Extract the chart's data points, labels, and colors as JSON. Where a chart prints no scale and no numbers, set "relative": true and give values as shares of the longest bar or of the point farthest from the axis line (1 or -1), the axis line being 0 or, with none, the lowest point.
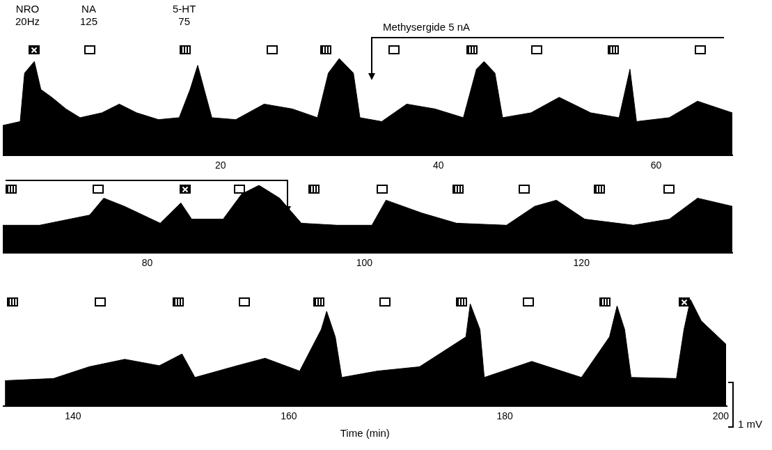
{
  "chart_data": [
    {
      "type": "area",
      "relative": true,
      "grid": false,
      "legend": false,
      "tick_labels": "x",
      "xlim": [
        0,
        67
      ],
      "xticks": [
        20,
        40,
        60
      ],
      "annotations": [
        "NRO\n20Hz",
        "NA\n125",
        "5-HT\n75",
        "Methysergide 5 nA"
      ],
      "series": [
        {
          "color": "#000000",
          "x": [
            0,
            1.6,
            2.0,
            2.9,
            3.5,
            4.5,
            5.8,
            7.1,
            9.1,
            10.7,
            12.3,
            14.3,
            16.2,
            17.2,
            17.9,
            18.5,
            19.2,
            21.4,
            24.0,
            26.6,
            28.9,
            29.9,
            30.9,
            32.2,
            32.8,
            34.8,
            37.1,
            39.7,
            42.3,
            43.5,
            44.2,
            45.2,
            45.9,
            48.5,
            51.1,
            54.0,
            56.6,
            57.6,
            58.2,
            61.2,
            63.8,
            67.0
          ],
          "values": [
            0.31,
            0.35,
            0.85,
            0.97,
            0.68,
            0.6,
            0.48,
            0.39,
            0.44,
            0.53,
            0.44,
            0.37,
            0.39,
            0.68,
            0.93,
            0.68,
            0.39,
            0.37,
            0.53,
            0.48,
            0.39,
            0.85,
            1,
            0.85,
            0.39,
            0.35,
            0.53,
            0.48,
            0.39,
            0.89,
            0.97,
            0.85,
            0.39,
            0.44,
            0.6,
            0.44,
            0.39,
            0.89,
            0.35,
            0.39,
            0.56,
            0.44
          ]
        }
      ]
    },
    {
      "type": "area",
      "relative": true,
      "grid": false,
      "legend": false,
      "tick_labels": "x",
      "xlim": [
        66.7,
        133.9
      ],
      "xticks": [
        80,
        100,
        120
      ],
      "series": [
        {
          "color": "#000000",
          "x": [
            66.7,
            70.1,
            74.7,
            76.0,
            77.9,
            81.2,
            83.1,
            84.1,
            87.0,
            88.7,
            90.3,
            92.2,
            94.2,
            97.5,
            100.7,
            102.0,
            105.3,
            108.5,
            113.1,
            115.7,
            117.7,
            120.3,
            124.8,
            128.1,
            130.7,
            133.9
          ],
          "values": [
            0.41,
            0.41,
            0.56,
            0.81,
            0.69,
            0.44,
            0.74,
            0.5,
            0.5,
            0.87,
            1,
            0.81,
            0.44,
            0.41,
            0.41,
            0.78,
            0.59,
            0.44,
            0.41,
            0.69,
            0.78,
            0.5,
            0.41,
            0.5,
            0.81,
            0.69
          ]
        }
      ]
    },
    {
      "type": "area",
      "relative": true,
      "grid": false,
      "legend": false,
      "tick_labels": "x",
      "xlim": [
        133.5,
        200.6
      ],
      "xticks": [
        140,
        160,
        180,
        200
      ],
      "xlabel": "Time (min)",
      "annotations": [
        "1 mV"
      ],
      "series": [
        {
          "color": "#000000",
          "x": [
            133.7,
            138.2,
            141.5,
            144.8,
            148.0,
            150.1,
            151.3,
            155.2,
            157.8,
            161.0,
            163.0,
            163.5,
            164.3,
            164.9,
            168.2,
            172.1,
            176.4,
            176.8,
            177.7,
            178.1,
            182.5,
            187.1,
            189.7,
            190.4,
            191.1,
            191.7,
            195.9,
            196.6,
            197.2,
            198.2,
            200.5
          ],
          "values": [
            0.24,
            0.26,
            0.37,
            0.44,
            0.38,
            0.49,
            0.27,
            0.38,
            0.45,
            0.33,
            0.72,
            0.89,
            0.65,
            0.27,
            0.33,
            0.37,
            0.65,
            0.96,
            0.72,
            0.27,
            0.42,
            0.27,
            0.65,
            0.94,
            0.72,
            0.27,
            0.26,
            0.72,
            1,
            0.8,
            0.58
          ]
        }
      ]
    }
  ]
}
